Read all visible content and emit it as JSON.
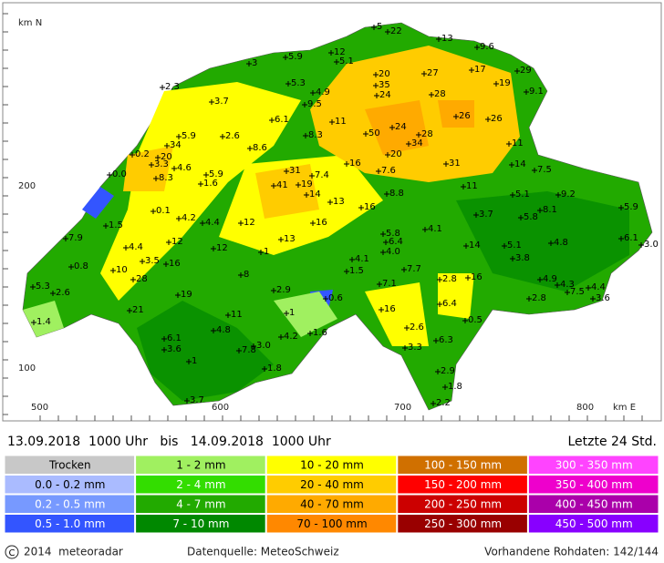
{
  "map": {
    "axis": {
      "north_unit": "km N",
      "east_unit": "km E",
      "north_labels": [
        "200",
        "100"
      ],
      "east_labels": [
        "500",
        "600",
        "700",
        "800"
      ]
    },
    "stations": [
      "5",
      "22",
      "13",
      "9.6",
      "12",
      "5.9",
      "5.1",
      "3",
      "20",
      "27",
      "17",
      "29",
      "2.3",
      "5.3",
      "35",
      "19",
      "9.1",
      "4.9",
      "3.7",
      "24",
      "28",
      "9.5",
      "6.1",
      "11",
      "26",
      "26",
      "24",
      "5.9",
      "2.6",
      "50",
      "28",
      "34",
      "34",
      "8.3",
      "8.6",
      "11",
      "0.2",
      "20",
      "20",
      "31",
      "3.3",
      "4.6",
      "16",
      "14",
      "7.5",
      "0.0",
      "31",
      "5.9",
      "7.4",
      "7.6",
      "41",
      "19",
      "8.3",
      "1.6",
      "11",
      "14",
      "8.8",
      "5.1",
      "9.2",
      "13",
      "16",
      "0.1",
      "4.2",
      "4.4",
      "12",
      "16",
      "3.7",
      "5.8",
      "8.1",
      "5.9",
      "1.5",
      "5.8",
      "4.1",
      "6.4",
      "13",
      "6.1",
      "3.0",
      "7.9",
      "12",
      "4.8",
      "4.0",
      "4.4",
      "12",
      "14",
      "5.1",
      "1",
      "4.1",
      "3.8",
      "3.5",
      "16",
      "0.8",
      "7.7",
      "10",
      "1.5",
      "8",
      "2.8",
      "16",
      "28",
      "4.9",
      "4.3",
      "7.5",
      "4.4",
      "5.3",
      "2.6",
      "7.1",
      "19",
      "2.9",
      "0.6",
      "2.8",
      "3.6",
      "6.4",
      "16",
      "21",
      "1",
      "11",
      "0.5",
      "1.4",
      "2.6",
      "4.8",
      "4.2",
      "1.6",
      "6.3",
      "6.1",
      "3.0",
      "3.6",
      "7.8",
      "3.3",
      "1",
      "2.9",
      "1.8",
      "1.8",
      "3.7",
      "2.2"
    ]
  },
  "header": {
    "period": "13.09.2018  1000 Uhr   bis   14.09.2018  1000 Uhr",
    "window": "Letzte 24 Std."
  },
  "legend": {
    "rows": [
      [
        "Trocken",
        "1 - 2 mm",
        "10 - 20 mm",
        "100 - 150 mm",
        "300 - 350 mm"
      ],
      [
        "0.0 - 0.2 mm",
        "2 - 4 mm",
        "20 - 40 mm",
        "150 - 200 mm",
        "350 - 400 mm"
      ],
      [
        "0.2 - 0.5 mm",
        "4 - 7 mm",
        "40 - 70 mm",
        "200 - 250 mm",
        "400 - 450 mm"
      ],
      [
        "0.5 - 1.0 mm",
        "7 - 10 mm",
        "70 - 100 mm",
        "250 - 300 mm",
        "450 - 500 mm"
      ]
    ]
  },
  "footer": {
    "copyright": "2014  meteoradar",
    "source": "Datenquelle: MeteoSchweiz",
    "raw": "Vorhandene Rohdaten: 142/144"
  }
}
